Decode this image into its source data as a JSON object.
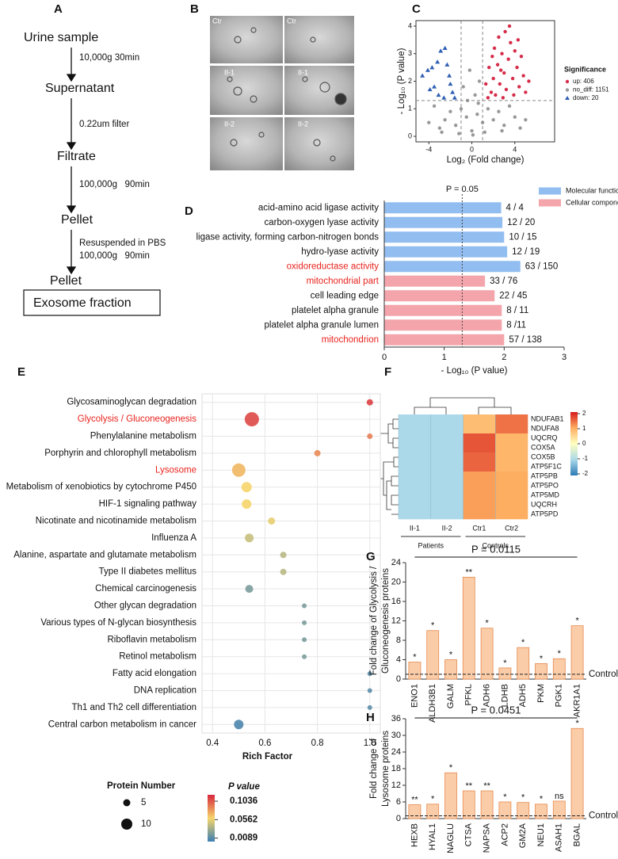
{
  "flowchart": {
    "panel": "A",
    "steps": [
      "Urine sample",
      "Supernatant",
      "Filtrate",
      "Pellet",
      "Pellet",
      "Exosome fraction"
    ],
    "conditions": [
      "10,000g 30min",
      "0.22um filter",
      "100,000g   90min",
      "Resuspended in PBS",
      "100,000g   90min"
    ]
  },
  "micrographs": {
    "panel": "B",
    "labels": [
      "Ctr",
      "Ctr",
      "II-1",
      "II-1",
      "II-2",
      "II-2"
    ]
  },
  "chart_data": [
    {
      "type": "scatter",
      "panel": "C",
      "xlabel": "Log₂ (Fold change)",
      "ylabel": "- Log₁₀ (P value)",
      "xlim": [
        -5.2,
        7.7
      ],
      "ylim": [
        -0.2,
        4.2
      ],
      "xticks": [
        -4,
        0,
        4
      ],
      "yticks": [
        0,
        1,
        2,
        3,
        4
      ],
      "thresholds": {
        "x": [
          -1,
          1
        ],
        "y": 1.3
      },
      "legend_title": "Significance",
      "legend": "right",
      "series": [
        {
          "name": "up: 406",
          "color": "#d62d4a",
          "marker": "circle",
          "x": [
            1.5,
            1.8,
            2,
            2.2,
            2.4,
            2.6,
            2.8,
            3,
            3.2,
            3.4,
            3.6,
            3.8,
            4,
            4.2,
            4.4,
            4.6,
            4.8,
            5,
            1.6,
            2.1,
            2.5,
            3.1,
            3.5,
            2.9,
            1.3,
            3.9,
            4.3,
            5.3,
            1.9,
            2.7
          ],
          "y": [
            1.4,
            1.6,
            2.1,
            1.5,
            2.6,
            1.9,
            3.0,
            2.3,
            1.7,
            2.8,
            3.4,
            2.1,
            3.1,
            2.5,
            1.8,
            2.9,
            2.2,
            1.6,
            2.5,
            3.2,
            3.6,
            3.8,
            4.0,
            1.4,
            1.9,
            1.5,
            3.5,
            2.0,
            2.9,
            2.4
          ]
        },
        {
          "name": "no_diff: 1151",
          "color": "#999999",
          "marker": "circle",
          "x": [
            -3,
            -2.5,
            -2,
            -1.5,
            -1,
            -0.5,
            0,
            0.5,
            1,
            1.5,
            2,
            2.5,
            3,
            3.5,
            4,
            4.5,
            -0.8,
            0.3,
            -0.2,
            0.7,
            -4,
            -3.5,
            5,
            0.1,
            -1.2,
            1.2,
            2.8,
            -2.8,
            0.6,
            -0.4
          ],
          "y": [
            0.3,
            0.6,
            0.9,
            0.4,
            1.0,
            0.7,
            0.2,
            0.8,
            0.5,
            1.0,
            0.6,
            0.9,
            0.4,
            1.1,
            0.7,
            0.3,
            1.8,
            1.5,
            2.4,
            2.0,
            0.5,
            1.1,
            0.6,
            0.05,
            0.1,
            0.15,
            0.2,
            0.15,
            1.2,
            1.3
          ]
        },
        {
          "name": "down: 20",
          "color": "#2f5fb3",
          "marker": "triangle",
          "x": [
            -4.6,
            -4.1,
            -3.7,
            -3.5,
            -3.2,
            -2.9,
            -2.5,
            -2.3,
            -2,
            -1.8,
            -1.6,
            -3.1,
            -2.6,
            -3.9,
            -2.1
          ],
          "y": [
            2.2,
            2.4,
            2.5,
            1.8,
            2.7,
            3.1,
            3.2,
            2.6,
            1.9,
            1.6,
            1.4,
            1.5,
            1.4,
            1.7,
            2.2
          ]
        }
      ]
    },
    {
      "type": "barh",
      "panel": "D",
      "xlabel": "- Log₁₀ (P value)",
      "xlim": [
        0,
        3
      ],
      "xticks": [
        0,
        1,
        2,
        3
      ],
      "reference": {
        "value": 1.3,
        "label": "P = 0.05"
      },
      "legend": "top right",
      "categories": [
        "acid-amino acid ligase activity",
        "carbon-oxygen lyase activity",
        "ligase activity, forming carbon-nitrogen bonds",
        "hydro-lyase activity",
        "oxidoreductase activity",
        "mitochondrial part",
        "cell leading edge",
        "platelet alpha granule",
        "platelet alpha granule lumen",
        "mitochondrion"
      ],
      "category_colors": [
        "#111111",
        "#111111",
        "#111111",
        "#111111",
        "#e8231d",
        "#e8231d",
        "#111111",
        "#111111",
        "#111111",
        "#e8231d"
      ],
      "series": [
        {
          "name": "Molecular function",
          "color": "#92bdf0",
          "values": [
            1.95,
            1.97,
            2.0,
            2.05,
            2.27,
            null,
            null,
            null,
            null,
            null
          ],
          "value_labels": [
            "4 / 4",
            "12 / 20",
            "10 / 15",
            "12 / 19",
            "63 / 150",
            null,
            null,
            null,
            null,
            null
          ]
        },
        {
          "name": "Cellular component",
          "color": "#f4a5ab",
          "values": [
            null,
            null,
            null,
            null,
            null,
            1.68,
            1.84,
            1.96,
            1.96,
            2.0
          ],
          "value_labels": [
            null,
            null,
            null,
            null,
            null,
            "33 / 76",
            "22 / 45",
            "8 / 11",
            "8 /11",
            "57 / 138"
          ]
        }
      ]
    },
    {
      "type": "bubble",
      "panel": "E",
      "xlabel": "Rich Factor",
      "xlim": [
        0.36,
        1.04
      ],
      "xticks": [
        0.4,
        0.6,
        0.8,
        {
          "value": 1,
          "label": "1.0"
        }
      ],
      "grid": true,
      "categories": [
        "Glycosaminoglycan degradation",
        "Glycolysis / Gluconeogenesis",
        "Phenylalanine metabolism",
        "Porphyrin and chlorophyll metabolism",
        "Lysosome",
        "Metabolism of xenobiotics by cytochrome P450",
        "HIF-1 signaling pathway",
        "Nicotinate and nicotinamide metabolism",
        "Influenza A",
        "Alanine, aspartate and glutamate metabolism",
        "Type II diabetes mellitus",
        "Chemical carcinogenesis",
        "Other glycan degradation",
        "Various types of N-glycan biosynthesis",
        "Riboflavin metabolism",
        "Retinol metabolism",
        "Fatty acid elongation",
        "DNA replication",
        "Th1 and Th2 cell differentiation",
        "Central carbon metabolism in cancer"
      ],
      "category_colors": [
        "#111111",
        "#e8231d",
        "#111111",
        "#111111",
        "#e8231d",
        "#111111",
        "#111111",
        "#111111",
        "#111111",
        "#111111",
        "#111111",
        "#111111",
        "#111111",
        "#111111",
        "#111111",
        "#111111",
        "#111111",
        "#111111",
        "#111111",
        "#111111"
      ],
      "values": [
        1.0,
        0.55,
        1.0,
        0.8,
        0.5,
        0.53,
        0.53,
        0.625,
        0.54,
        0.67,
        0.67,
        0.54,
        0.75,
        0.75,
        0.75,
        0.75,
        1.0,
        1.0,
        1.0,
        0.5
      ],
      "sizes": [
        4,
        14,
        3,
        4,
        13,
        9,
        8,
        5,
        7,
        4,
        4,
        6,
        2,
        2,
        2,
        2,
        2,
        2,
        2,
        8
      ],
      "pvalues": [
        0.009,
        0.012,
        0.03,
        0.035,
        0.05,
        0.06,
        0.06,
        0.065,
        0.075,
        0.08,
        0.08,
        0.1,
        0.1,
        0.1,
        0.1,
        0.1,
        0.11,
        0.11,
        0.11,
        0.115
      ],
      "size_legend": {
        "title": "Protein Number",
        "values": [
          5,
          10
        ]
      },
      "color_legend": {
        "title": "P value",
        "ticks": [
          0.1036,
          0.0562,
          0.0089
        ]
      },
      "clim": [
        0,
        0.12
      ],
      "colors": [
        "#d7263d",
        "#f6d56b",
        "#3d7fb3"
      ]
    },
    {
      "type": "heatmap",
      "panel": "F",
      "columns": [
        "II-1",
        "II-2",
        "Ctr1",
        "Ctr2"
      ],
      "rows": [
        "NDUFAB1",
        "NDUFA8",
        "UQCRQ",
        "COX5A",
        "COX5B",
        "ATP5F1C",
        "ATP5PB",
        "ATP5PO",
        "ATP5MD",
        "UQCRH",
        "ATP5PD"
      ],
      "values": [
        [
          -1,
          -1,
          0.8,
          1.4
        ],
        [
          -1,
          -1,
          0.8,
          1.4
        ],
        [
          -1,
          -1,
          1.6,
          0.9
        ],
        [
          -1,
          -1,
          1.6,
          0.9
        ],
        [
          -1,
          -1,
          1.5,
          0.9
        ],
        [
          -1,
          -1,
          1.5,
          0.9
        ],
        [
          -1,
          -1,
          1.1,
          1.0
        ],
        [
          -1,
          -1,
          1.1,
          1.0
        ],
        [
          -1,
          -1,
          1.1,
          1.0
        ],
        [
          -1,
          -1,
          1.1,
          1.0
        ],
        [
          -1,
          -1,
          1.1,
          1.0
        ]
      ],
      "groups": [
        {
          "name": "Patients",
          "span": 2
        },
        {
          "name": "Controls",
          "span": 2
        }
      ],
      "clim": [
        -2,
        2
      ],
      "cticks": [
        2,
        1,
        0,
        -1,
        -2
      ],
      "colors": [
        "#2c7bb6",
        "#abd9e9",
        "#ffffbf",
        "#fdae61",
        "#d7191c"
      ]
    },
    {
      "type": "bar",
      "panel": "G",
      "title": "P = 0.0115",
      "ylabel": [
        "Fold change of Glycolysis /",
        "Gluconeogenesis proteins"
      ],
      "categories": [
        "ENO1",
        "ALDH3B1",
        "GALM",
        "PFKL",
        "ADH6",
        "LDHB",
        "ADH5",
        "PKM",
        "PGK1",
        "AKR1A1"
      ],
      "values": [
        3.5,
        10,
        4,
        21,
        10.5,
        2.3,
        6.5,
        3.2,
        4.2,
        11
      ],
      "significance": [
        "*",
        "*",
        "*",
        "**",
        "*",
        "*",
        "*",
        "*",
        "*",
        "*"
      ],
      "color": "#fbcca8",
      "edge_color": "#e58a4e",
      "reference": {
        "value": 1,
        "label": "Control"
      },
      "ylim": [
        0,
        24
      ],
      "yticks": [
        0,
        4,
        8,
        12,
        16,
        20,
        24
      ]
    },
    {
      "type": "bar",
      "panel": "H",
      "title": "P = 0.0451",
      "ylabel": [
        "Fold change of",
        "Lysosome proteins"
      ],
      "categories": [
        "HEXB",
        "HYAL1",
        "NAGLU",
        "CTSA",
        "NAPSA",
        "ACP2",
        "GM2A",
        "NEU1",
        "ASAH1",
        "BGAL"
      ],
      "values": [
        5,
        5.2,
        16.5,
        10,
        10,
        6,
        5.8,
        5.2,
        6.3,
        32.5
      ],
      "significance": [
        "**",
        "*",
        "*",
        "**",
        "**",
        "*",
        "*",
        "*",
        "ns",
        "*"
      ],
      "color": "#fbcca8",
      "edge_color": "#e58a4e",
      "reference": {
        "value": 1,
        "label": "Control"
      },
      "ylim": [
        0,
        36
      ],
      "yticks": [
        0,
        6,
        12,
        18,
        24,
        30,
        36
      ]
    }
  ]
}
